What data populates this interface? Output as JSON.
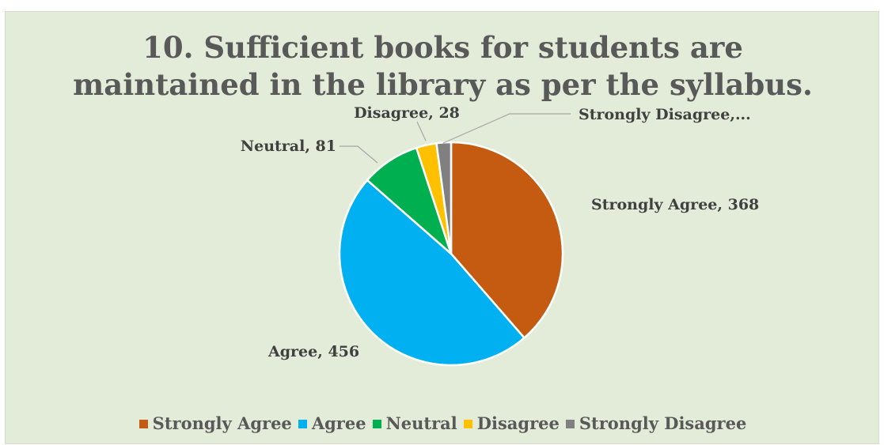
{
  "chart_data": {
    "type": "pie",
    "title_lines": [
      "10. Sufficient books for students are",
      "maintained in the library as per the syllabus."
    ],
    "categories": [
      "Strongly Agree",
      "Agree",
      "Neutral",
      "Disagree",
      "Strongly Disagree"
    ],
    "values": [
      368,
      456,
      81,
      28,
      20
    ],
    "data_labels": [
      "Strongly Agree, 368",
      "Agree, 456",
      "Neutral, 81",
      "Disagree, 28",
      "Strongly Disagree,..."
    ],
    "colors": [
      "#c55a11",
      "#00b0f0",
      "#00b050",
      "#ffc000",
      "#808080"
    ],
    "legend_position": "bottom",
    "start_angle_deg": 0,
    "direction": "clockwise"
  }
}
